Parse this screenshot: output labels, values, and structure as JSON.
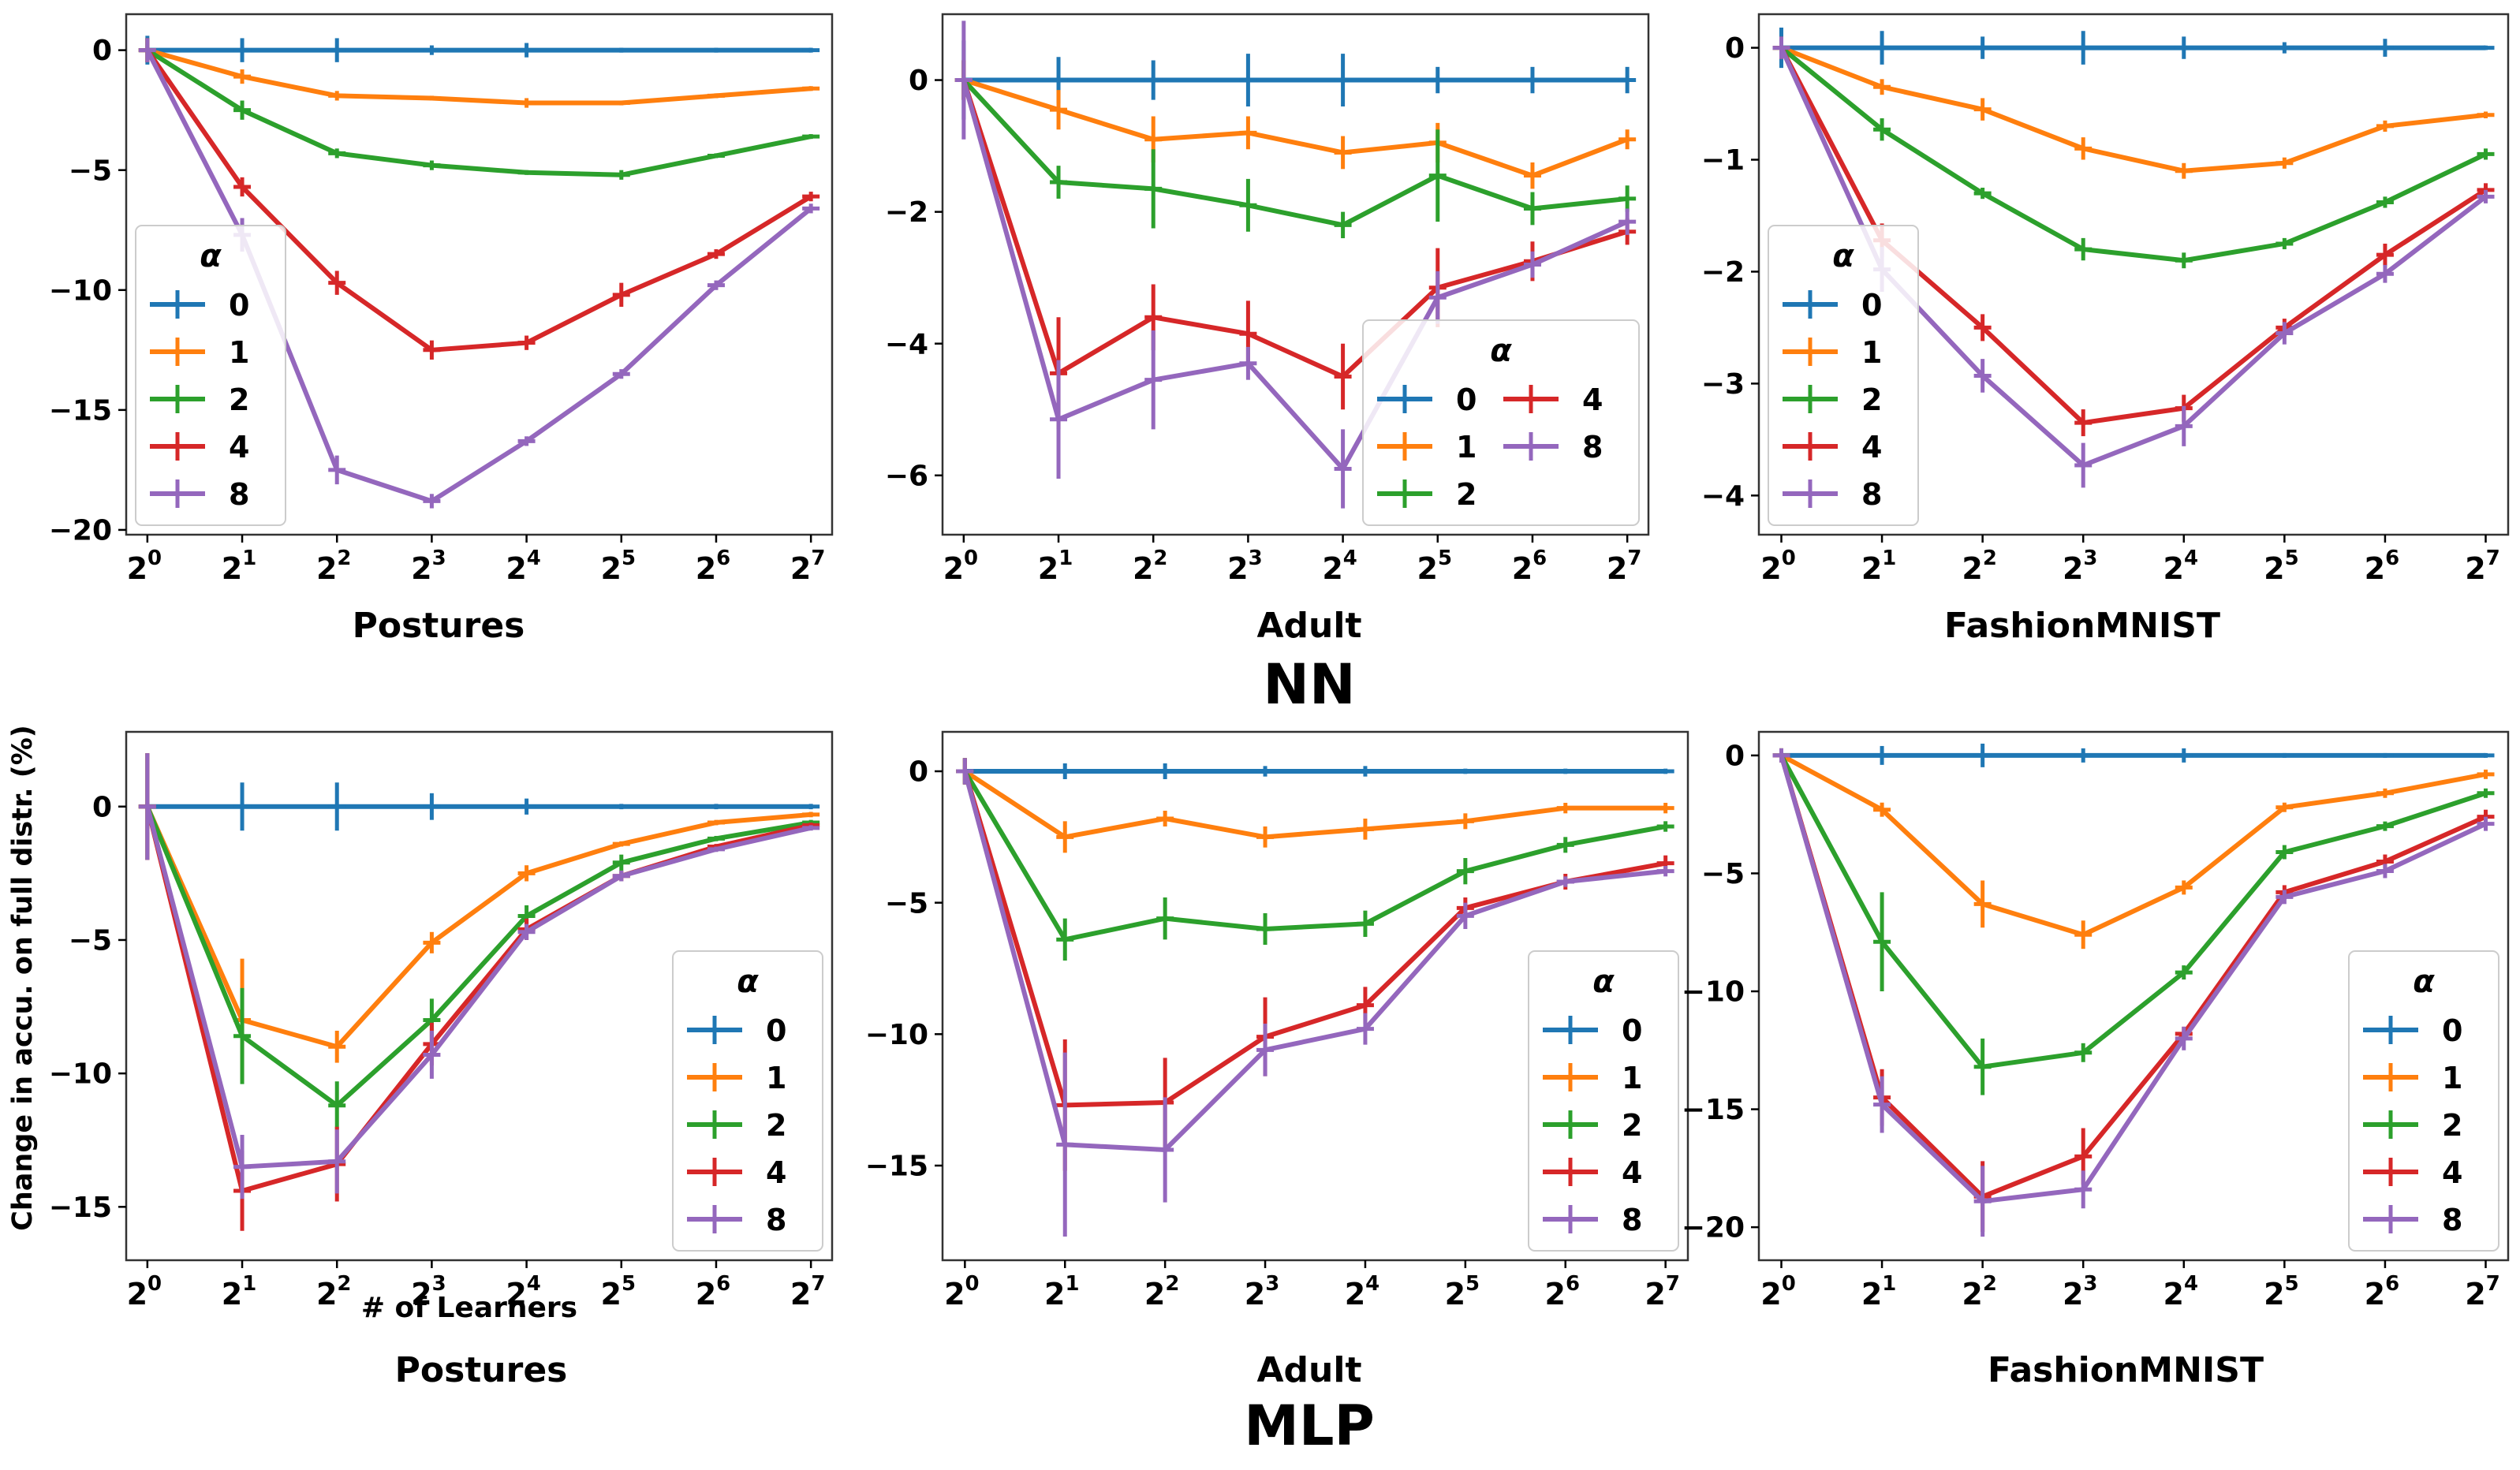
{
  "figure": {
    "group_titles": [
      "NN",
      "MLP"
    ],
    "ylabel": "Change in accu. on full distr. (%)",
    "xlabel": "# of Learners",
    "legend_title": "α",
    "colors": {
      "0": "#1f77b4",
      "1": "#ff7f0e",
      "2": "#2ca02c",
      "4": "#d62728",
      "8": "#9467bd"
    }
  },
  "chart_data": [
    {
      "type": "line",
      "group": "NN",
      "title": "Postures",
      "x": [
        0,
        1,
        2,
        3,
        4,
        5,
        6,
        7
      ],
      "x_tick_labels": [
        "0",
        "1",
        "2",
        "3",
        "4",
        "5",
        "6",
        "7"
      ],
      "x_tick_prefix": "2",
      "ylim": [
        -20.2,
        1.5
      ],
      "yticks": [
        0,
        -5,
        -10,
        -15,
        -20
      ],
      "legend": "left",
      "legend_cols": 1,
      "series": [
        {
          "name": "0",
          "values": [
            0,
            0,
            0,
            0,
            0,
            0,
            0,
            0
          ],
          "errors": [
            0.6,
            0.5,
            0.5,
            0.2,
            0.3,
            0.1,
            0.1,
            0.1
          ]
        },
        {
          "name": "1",
          "values": [
            0,
            -1.1,
            -1.9,
            -2.0,
            -2.2,
            -2.2,
            -1.9,
            -1.6
          ],
          "errors": [
            0.5,
            0.3,
            0.2,
            0.1,
            0.2,
            0.1,
            0.1,
            0.1
          ]
        },
        {
          "name": "2",
          "values": [
            0,
            -2.5,
            -4.3,
            -4.8,
            -5.1,
            -5.2,
            -4.4,
            -3.6
          ],
          "errors": [
            0.5,
            0.4,
            0.2,
            0.2,
            0.1,
            0.2,
            0.1,
            0.1
          ]
        },
        {
          "name": "4",
          "values": [
            0,
            -5.7,
            -9.7,
            -12.5,
            -12.2,
            -10.2,
            -8.5,
            -6.1
          ],
          "errors": [
            0.5,
            0.4,
            0.5,
            0.4,
            0.3,
            0.5,
            0.2,
            0.2
          ]
        },
        {
          "name": "8",
          "values": [
            0,
            -7.7,
            -17.5,
            -18.8,
            -16.3,
            -13.5,
            -9.8,
            -6.6
          ],
          "errors": [
            0.5,
            0.7,
            0.6,
            0.3,
            0.2,
            0.2,
            0.2,
            0.2
          ]
        }
      ]
    },
    {
      "type": "line",
      "group": "NN",
      "title": "Adult",
      "x": [
        0,
        1,
        2,
        3,
        4,
        5,
        6,
        7
      ],
      "x_tick_labels": [
        "0",
        "1",
        "2",
        "3",
        "4",
        "5",
        "6",
        "7"
      ],
      "x_tick_prefix": "2",
      "ylim": [
        -6.9,
        1.0
      ],
      "yticks": [
        0,
        -2,
        -4,
        -6
      ],
      "legend": "right",
      "legend_cols": 2,
      "series": [
        {
          "name": "0",
          "values": [
            0,
            0,
            0,
            0,
            0,
            0,
            0,
            0
          ],
          "errors": [
            0.6,
            0.35,
            0.3,
            0.4,
            0.4,
            0.2,
            0.2,
            0.2
          ]
        },
        {
          "name": "1",
          "values": [
            0,
            -0.45,
            -0.9,
            -0.8,
            -1.1,
            -0.95,
            -1.45,
            -0.9
          ],
          "errors": [
            0.3,
            0.3,
            0.35,
            0.25,
            0.25,
            0.3,
            0.2,
            0.15
          ]
        },
        {
          "name": "2",
          "values": [
            0,
            -1.55,
            -1.65,
            -1.9,
            -2.2,
            -1.45,
            -1.95,
            -1.8
          ],
          "errors": [
            0.3,
            0.25,
            0.6,
            0.4,
            0.2,
            0.7,
            0.25,
            0.2
          ]
        },
        {
          "name": "4",
          "values": [
            0,
            -4.45,
            -3.6,
            -3.85,
            -4.5,
            -3.15,
            -2.75,
            -2.3
          ],
          "errors": [
            0.3,
            0.85,
            0.5,
            0.5,
            0.5,
            0.6,
            0.3,
            0.2
          ]
        },
        {
          "name": "8",
          "values": [
            0,
            -5.15,
            -4.55,
            -4.3,
            -5.9,
            -3.3,
            -2.8,
            -2.15
          ],
          "errors": [
            0.9,
            0.9,
            0.75,
            0.25,
            0.6,
            0.4,
            0.2,
            0.2
          ]
        }
      ]
    },
    {
      "type": "line",
      "group": "NN",
      "title": "FashionMNIST",
      "x": [
        0,
        1,
        2,
        3,
        4,
        5,
        6,
        7
      ],
      "x_tick_labels": [
        "0",
        "1",
        "2",
        "3",
        "4",
        "5",
        "6",
        "7"
      ],
      "x_tick_prefix": "2",
      "ylim": [
        -4.35,
        0.3
      ],
      "yticks": [
        0,
        -1,
        -2,
        -3,
        -4
      ],
      "legend": "left",
      "legend_cols": 1,
      "series": [
        {
          "name": "0",
          "values": [
            0,
            0,
            0,
            0,
            0,
            0,
            0,
            0
          ],
          "errors": [
            0.18,
            0.15,
            0.1,
            0.15,
            0.1,
            0.05,
            0.08,
            0.02
          ]
        },
        {
          "name": "1",
          "values": [
            0,
            -0.35,
            -0.55,
            -0.9,
            -1.1,
            -1.03,
            -0.7,
            -0.6
          ],
          "errors": [
            0.08,
            0.07,
            0.1,
            0.1,
            0.07,
            0.05,
            0.05,
            0.03
          ]
        },
        {
          "name": "2",
          "values": [
            0,
            -0.73,
            -1.3,
            -1.8,
            -1.9,
            -1.75,
            -1.38,
            -0.95
          ],
          "errors": [
            0.1,
            0.1,
            0.05,
            0.1,
            0.07,
            0.05,
            0.05,
            0.05
          ]
        },
        {
          "name": "4",
          "values": [
            0,
            -1.72,
            -2.5,
            -3.35,
            -3.22,
            -2.5,
            -1.85,
            -1.27
          ],
          "errors": [
            0.1,
            0.15,
            0.12,
            0.12,
            0.12,
            0.08,
            0.1,
            0.06
          ]
        },
        {
          "name": "8",
          "values": [
            0,
            -1.98,
            -2.93,
            -3.73,
            -3.38,
            -2.55,
            -2.02,
            -1.33
          ],
          "errors": [
            0.1,
            0.2,
            0.15,
            0.2,
            0.18,
            0.1,
            0.08,
            0.06
          ]
        }
      ]
    },
    {
      "type": "line",
      "group": "MLP",
      "title": "Postures",
      "x": [
        0,
        1,
        2,
        3,
        4,
        5,
        6,
        7
      ],
      "x_tick_labels": [
        "0",
        "1",
        "2",
        "3",
        "4",
        "5",
        "6",
        "7"
      ],
      "x_tick_prefix": "2",
      "ylim": [
        -17.0,
        2.8
      ],
      "yticks": [
        0,
        -5,
        -10,
        -15
      ],
      "legend": "right",
      "legend_cols": 1,
      "series": [
        {
          "name": "0",
          "values": [
            0,
            0,
            0,
            0,
            0,
            0,
            0,
            0
          ],
          "errors": [
            2.0,
            0.9,
            0.9,
            0.5,
            0.3,
            0.1,
            0.1,
            0.1
          ]
        },
        {
          "name": "1",
          "values": [
            0,
            -8.0,
            -9.0,
            -5.1,
            -2.5,
            -1.4,
            -0.6,
            -0.3
          ],
          "errors": [
            2.0,
            2.3,
            0.6,
            0.4,
            0.3,
            0.1,
            0.1,
            0.1
          ]
        },
        {
          "name": "2",
          "values": [
            0,
            -8.6,
            -11.2,
            -8.0,
            -4.1,
            -2.1,
            -1.2,
            -0.6
          ],
          "errors": [
            2.0,
            1.8,
            0.9,
            0.8,
            0.4,
            0.3,
            0.1,
            0.1
          ]
        },
        {
          "name": "4",
          "values": [
            0,
            -14.4,
            -13.4,
            -8.9,
            -4.6,
            -2.6,
            -1.5,
            -0.7
          ],
          "errors": [
            2.0,
            1.5,
            1.4,
            0.8,
            0.4,
            0.2,
            0.1,
            0.1
          ]
        },
        {
          "name": "8",
          "values": [
            0,
            -13.5,
            -13.3,
            -9.3,
            -4.7,
            -2.6,
            -1.6,
            -0.8
          ],
          "errors": [
            2.0,
            1.2,
            1.2,
            0.9,
            0.3,
            0.2,
            0.1,
            0.1
          ]
        }
      ]
    },
    {
      "type": "line",
      "group": "MLP",
      "title": "Adult",
      "x": [
        0,
        1,
        2,
        3,
        4,
        5,
        6,
        7
      ],
      "x_tick_labels": [
        "0",
        "1",
        "2",
        "3",
        "4",
        "5",
        "6",
        "7"
      ],
      "x_tick_prefix": "2",
      "ylim": [
        -18.6,
        1.5
      ],
      "yticks": [
        0,
        -5,
        -10,
        -15
      ],
      "legend": "right",
      "legend_cols": 1,
      "series": [
        {
          "name": "0",
          "values": [
            0,
            0,
            0,
            0,
            0,
            0,
            0,
            0
          ],
          "errors": [
            0.5,
            0.3,
            0.3,
            0.2,
            0.2,
            0.1,
            0.1,
            0.1
          ]
        },
        {
          "name": "1",
          "values": [
            0,
            -2.5,
            -1.8,
            -2.5,
            -2.2,
            -1.9,
            -1.4,
            -1.4
          ],
          "errors": [
            0.5,
            0.6,
            0.3,
            0.4,
            0.4,
            0.3,
            0.2,
            0.2
          ]
        },
        {
          "name": "2",
          "values": [
            0,
            -6.4,
            -5.6,
            -6.0,
            -5.8,
            -3.8,
            -2.8,
            -2.1
          ],
          "errors": [
            0.5,
            0.8,
            0.8,
            0.6,
            0.5,
            0.5,
            0.3,
            0.2
          ]
        },
        {
          "name": "4",
          "values": [
            0,
            -12.7,
            -12.6,
            -10.1,
            -8.9,
            -5.2,
            -4.2,
            -3.5
          ],
          "errors": [
            0.5,
            2.5,
            1.7,
            1.5,
            0.7,
            0.4,
            0.3,
            0.3
          ]
        },
        {
          "name": "8",
          "values": [
            0,
            -14.2,
            -14.4,
            -10.6,
            -9.8,
            -5.5,
            -4.2,
            -3.8
          ],
          "errors": [
            0.5,
            3.5,
            2.0,
            1.0,
            0.6,
            0.5,
            0.2,
            0.2
          ]
        }
      ]
    },
    {
      "type": "line",
      "group": "MLP",
      "title": "FashionMNIST",
      "x": [
        0,
        1,
        2,
        3,
        4,
        5,
        6,
        7
      ],
      "x_tick_labels": [
        "0",
        "1",
        "2",
        "3",
        "4",
        "5",
        "6",
        "7"
      ],
      "x_tick_prefix": "2",
      "ylim": [
        -21.4,
        1.0
      ],
      "yticks": [
        0,
        -5,
        -10,
        -15,
        -20
      ],
      "legend": "right",
      "legend_cols": 1,
      "series": [
        {
          "name": "0",
          "values": [
            0,
            0,
            0,
            0,
            0,
            0,
            0,
            0
          ],
          "errors": [
            0.3,
            0.4,
            0.5,
            0.3,
            0.3,
            0.1,
            0.1,
            0.1
          ]
        },
        {
          "name": "1",
          "values": [
            0,
            -2.3,
            -6.3,
            -7.6,
            -5.6,
            -2.2,
            -1.6,
            -0.8
          ],
          "errors": [
            0.3,
            0.3,
            1.0,
            0.6,
            0.3,
            0.2,
            0.2,
            0.2
          ]
        },
        {
          "name": "2",
          "values": [
            0,
            -7.9,
            -13.2,
            -12.6,
            -9.2,
            -4.1,
            -3.0,
            -1.6
          ],
          "errors": [
            0.3,
            2.1,
            1.2,
            0.4,
            0.3,
            0.3,
            0.2,
            0.2
          ]
        },
        {
          "name": "4",
          "values": [
            0,
            -14.5,
            -18.7,
            -17.0,
            -11.8,
            -5.8,
            -4.5,
            -2.6
          ],
          "errors": [
            0.3,
            1.2,
            1.5,
            1.2,
            0.3,
            0.3,
            0.3,
            0.3
          ]
        },
        {
          "name": "8",
          "values": [
            0,
            -14.8,
            -18.9,
            -18.4,
            -12.0,
            -6.0,
            -4.9,
            -2.9
          ],
          "errors": [
            0.3,
            1.2,
            1.5,
            0.8,
            0.5,
            0.3,
            0.3,
            0.3
          ]
        }
      ]
    }
  ]
}
